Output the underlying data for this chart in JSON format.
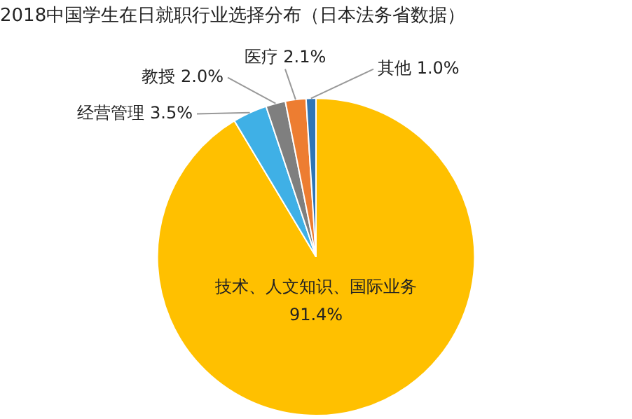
{
  "chart_data": {
    "type": "pie",
    "title": "2018中国学生在日就职行业选择分布（日本法务省数据）",
    "categories": [
      "技术、人文知识、国际业务",
      "经营管理",
      "教授",
      "医疗",
      "其他"
    ],
    "values": [
      91.4,
      3.5,
      2.0,
      2.1,
      1.0
    ],
    "value_labels": [
      "91.4%",
      "3.5%",
      "2.0%",
      "2.1%",
      "1.0%"
    ],
    "colors": [
      "#ffc000",
      "#3fb0e6",
      "#7f7f7f",
      "#ed7d31",
      "#2e75b6"
    ],
    "legend": false
  }
}
